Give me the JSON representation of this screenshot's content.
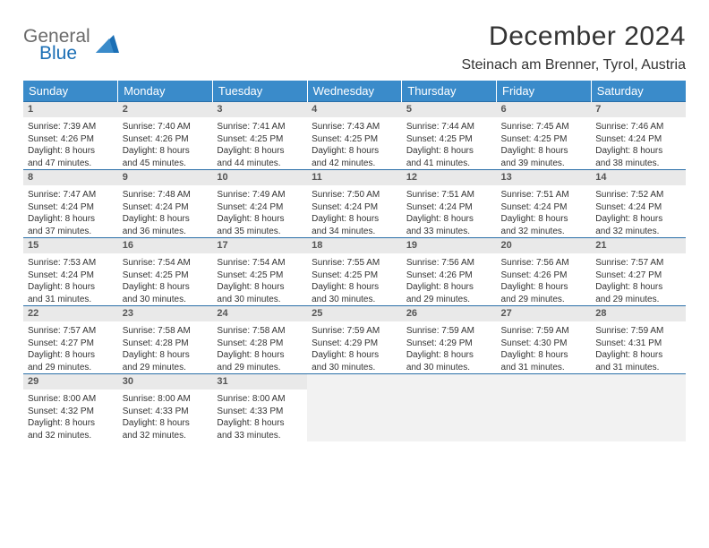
{
  "logo": {
    "word1": "General",
    "word2": "Blue"
  },
  "title": "December 2024",
  "location": "Steinach am Brenner, Tyrol, Austria",
  "colors": {
    "header_bg": "#3a8bca",
    "header_text": "#ffffff",
    "row_border": "#2a6fa8",
    "daynum_bg": "#e9e9e9",
    "empty_bg": "#f2f2f2",
    "logo_gray": "#6a6a6a",
    "logo_blue": "#1b6fb5"
  },
  "day_headers": [
    "Sunday",
    "Monday",
    "Tuesday",
    "Wednesday",
    "Thursday",
    "Friday",
    "Saturday"
  ],
  "weeks": [
    [
      {
        "n": "1",
        "sr": "Sunrise: 7:39 AM",
        "ss": "Sunset: 4:26 PM",
        "d1": "Daylight: 8 hours",
        "d2": "and 47 minutes."
      },
      {
        "n": "2",
        "sr": "Sunrise: 7:40 AM",
        "ss": "Sunset: 4:26 PM",
        "d1": "Daylight: 8 hours",
        "d2": "and 45 minutes."
      },
      {
        "n": "3",
        "sr": "Sunrise: 7:41 AM",
        "ss": "Sunset: 4:25 PM",
        "d1": "Daylight: 8 hours",
        "d2": "and 44 minutes."
      },
      {
        "n": "4",
        "sr": "Sunrise: 7:43 AM",
        "ss": "Sunset: 4:25 PM",
        "d1": "Daylight: 8 hours",
        "d2": "and 42 minutes."
      },
      {
        "n": "5",
        "sr": "Sunrise: 7:44 AM",
        "ss": "Sunset: 4:25 PM",
        "d1": "Daylight: 8 hours",
        "d2": "and 41 minutes."
      },
      {
        "n": "6",
        "sr": "Sunrise: 7:45 AM",
        "ss": "Sunset: 4:25 PM",
        "d1": "Daylight: 8 hours",
        "d2": "and 39 minutes."
      },
      {
        "n": "7",
        "sr": "Sunrise: 7:46 AM",
        "ss": "Sunset: 4:24 PM",
        "d1": "Daylight: 8 hours",
        "d2": "and 38 minutes."
      }
    ],
    [
      {
        "n": "8",
        "sr": "Sunrise: 7:47 AM",
        "ss": "Sunset: 4:24 PM",
        "d1": "Daylight: 8 hours",
        "d2": "and 37 minutes."
      },
      {
        "n": "9",
        "sr": "Sunrise: 7:48 AM",
        "ss": "Sunset: 4:24 PM",
        "d1": "Daylight: 8 hours",
        "d2": "and 36 minutes."
      },
      {
        "n": "10",
        "sr": "Sunrise: 7:49 AM",
        "ss": "Sunset: 4:24 PM",
        "d1": "Daylight: 8 hours",
        "d2": "and 35 minutes."
      },
      {
        "n": "11",
        "sr": "Sunrise: 7:50 AM",
        "ss": "Sunset: 4:24 PM",
        "d1": "Daylight: 8 hours",
        "d2": "and 34 minutes."
      },
      {
        "n": "12",
        "sr": "Sunrise: 7:51 AM",
        "ss": "Sunset: 4:24 PM",
        "d1": "Daylight: 8 hours",
        "d2": "and 33 minutes."
      },
      {
        "n": "13",
        "sr": "Sunrise: 7:51 AM",
        "ss": "Sunset: 4:24 PM",
        "d1": "Daylight: 8 hours",
        "d2": "and 32 minutes."
      },
      {
        "n": "14",
        "sr": "Sunrise: 7:52 AM",
        "ss": "Sunset: 4:24 PM",
        "d1": "Daylight: 8 hours",
        "d2": "and 32 minutes."
      }
    ],
    [
      {
        "n": "15",
        "sr": "Sunrise: 7:53 AM",
        "ss": "Sunset: 4:24 PM",
        "d1": "Daylight: 8 hours",
        "d2": "and 31 minutes."
      },
      {
        "n": "16",
        "sr": "Sunrise: 7:54 AM",
        "ss": "Sunset: 4:25 PM",
        "d1": "Daylight: 8 hours",
        "d2": "and 30 minutes."
      },
      {
        "n": "17",
        "sr": "Sunrise: 7:54 AM",
        "ss": "Sunset: 4:25 PM",
        "d1": "Daylight: 8 hours",
        "d2": "and 30 minutes."
      },
      {
        "n": "18",
        "sr": "Sunrise: 7:55 AM",
        "ss": "Sunset: 4:25 PM",
        "d1": "Daylight: 8 hours",
        "d2": "and 30 minutes."
      },
      {
        "n": "19",
        "sr": "Sunrise: 7:56 AM",
        "ss": "Sunset: 4:26 PM",
        "d1": "Daylight: 8 hours",
        "d2": "and 29 minutes."
      },
      {
        "n": "20",
        "sr": "Sunrise: 7:56 AM",
        "ss": "Sunset: 4:26 PM",
        "d1": "Daylight: 8 hours",
        "d2": "and 29 minutes."
      },
      {
        "n": "21",
        "sr": "Sunrise: 7:57 AM",
        "ss": "Sunset: 4:27 PM",
        "d1": "Daylight: 8 hours",
        "d2": "and 29 minutes."
      }
    ],
    [
      {
        "n": "22",
        "sr": "Sunrise: 7:57 AM",
        "ss": "Sunset: 4:27 PM",
        "d1": "Daylight: 8 hours",
        "d2": "and 29 minutes."
      },
      {
        "n": "23",
        "sr": "Sunrise: 7:58 AM",
        "ss": "Sunset: 4:28 PM",
        "d1": "Daylight: 8 hours",
        "d2": "and 29 minutes."
      },
      {
        "n": "24",
        "sr": "Sunrise: 7:58 AM",
        "ss": "Sunset: 4:28 PM",
        "d1": "Daylight: 8 hours",
        "d2": "and 29 minutes."
      },
      {
        "n": "25",
        "sr": "Sunrise: 7:59 AM",
        "ss": "Sunset: 4:29 PM",
        "d1": "Daylight: 8 hours",
        "d2": "and 30 minutes."
      },
      {
        "n": "26",
        "sr": "Sunrise: 7:59 AM",
        "ss": "Sunset: 4:29 PM",
        "d1": "Daylight: 8 hours",
        "d2": "and 30 minutes."
      },
      {
        "n": "27",
        "sr": "Sunrise: 7:59 AM",
        "ss": "Sunset: 4:30 PM",
        "d1": "Daylight: 8 hours",
        "d2": "and 31 minutes."
      },
      {
        "n": "28",
        "sr": "Sunrise: 7:59 AM",
        "ss": "Sunset: 4:31 PM",
        "d1": "Daylight: 8 hours",
        "d2": "and 31 minutes."
      }
    ],
    [
      {
        "n": "29",
        "sr": "Sunrise: 8:00 AM",
        "ss": "Sunset: 4:32 PM",
        "d1": "Daylight: 8 hours",
        "d2": "and 32 minutes."
      },
      {
        "n": "30",
        "sr": "Sunrise: 8:00 AM",
        "ss": "Sunset: 4:33 PM",
        "d1": "Daylight: 8 hours",
        "d2": "and 32 minutes."
      },
      {
        "n": "31",
        "sr": "Sunrise: 8:00 AM",
        "ss": "Sunset: 4:33 PM",
        "d1": "Daylight: 8 hours",
        "d2": "and 33 minutes."
      },
      null,
      null,
      null,
      null
    ]
  ]
}
